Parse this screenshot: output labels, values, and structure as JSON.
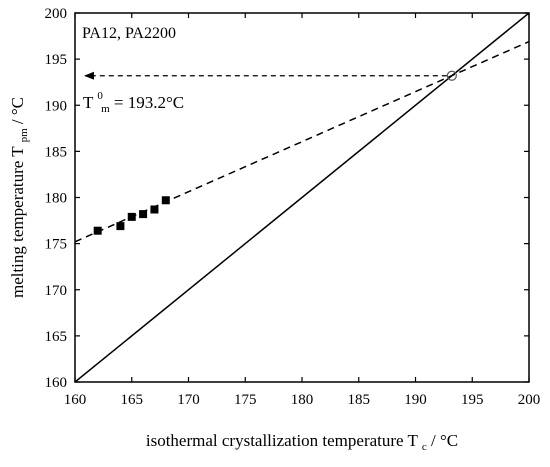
{
  "chart_data": {
    "type": "scatter",
    "xlabel_main": "isothermal crystallization temperature T",
    "xlabel_sub": "c",
    "xlabel_unit": " / °C",
    "ylabel_main": "melting temperature T",
    "ylabel_sub": "pm",
    "ylabel_unit": " / °C",
    "xlim": [
      160,
      200
    ],
    "ylim": [
      160,
      200
    ],
    "xticks": [
      160,
      165,
      170,
      175,
      180,
      185,
      190,
      195,
      200
    ],
    "yticks": [
      160,
      165,
      170,
      175,
      180,
      185,
      190,
      195,
      200
    ],
    "grid": false,
    "series_label": "PA12, PA2200",
    "annotation": {
      "symbol": "T",
      "sub": "m",
      "sup": "0",
      "text": " = 193.2°C",
      "value": 193.2
    },
    "series": [
      {
        "marker": "square",
        "points": [
          {
            "x": 162,
            "y": 176.4
          },
          {
            "x": 164,
            "y": 176.9
          },
          {
            "x": 165,
            "y": 177.9
          },
          {
            "x": 166,
            "y": 178.2
          },
          {
            "x": 167,
            "y": 178.7
          },
          {
            "x": 168,
            "y": 179.7
          }
        ]
      }
    ],
    "fit_line": {
      "style": "dashed",
      "x": [
        160,
        200
      ],
      "y": [
        175.2,
        196.9
      ]
    },
    "equality_line": {
      "style": "solid",
      "x": [
        160,
        200
      ],
      "y": [
        160,
        200
      ]
    },
    "intersection": {
      "x": 193.2,
      "y": 193.2,
      "marker": "open-circle"
    },
    "arrow": {
      "style": "dashed",
      "from_x": 193.2,
      "to_x": 160,
      "y": 193.2
    }
  }
}
